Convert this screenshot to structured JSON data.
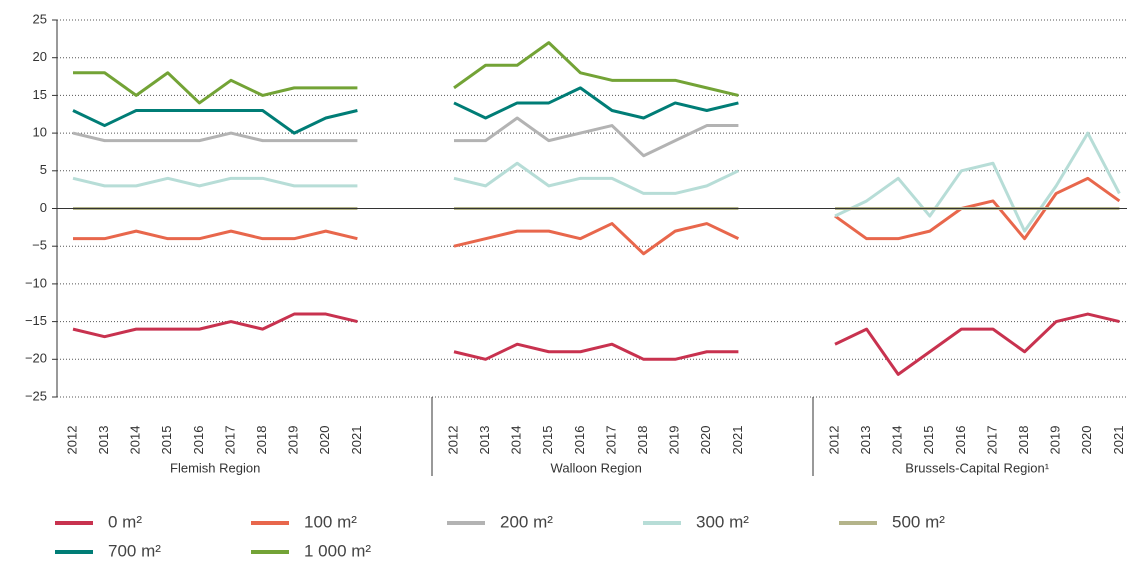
{
  "chart_data": {
    "type": "line",
    "ylim": [
      -25,
      25
    ],
    "yticks": [
      {
        "value": -25,
        "label": "−25"
      },
      {
        "value": -20,
        "label": "−20"
      },
      {
        "value": -15,
        "label": "−15"
      },
      {
        "value": -10,
        "label": "−10"
      },
      {
        "value": -5,
        "label": "−5"
      },
      0,
      5,
      10,
      15,
      20,
      25
    ],
    "grid": true,
    "legend": "bottom",
    "series": [
      {
        "name": "0 m²",
        "color": "#c8324f"
      },
      {
        "name": "100 m²",
        "color": "#e8674c"
      },
      {
        "name": "200 m²",
        "color": "#b3b3b3"
      },
      {
        "name": "300 m²",
        "color": "#b7ddd7"
      },
      {
        "name": "500 m²",
        "color": "#b4b48a"
      },
      {
        "name": "700 m²",
        "color": "#007d76"
      },
      {
        "name": "1 000 m²",
        "color": "#73a336"
      }
    ],
    "panels": [
      {
        "label": "Flemish Region",
        "categories": [
          "2012",
          "2013",
          "2014",
          "2015",
          "2016",
          "2017",
          "2018",
          "2019",
          "2020",
          "2021"
        ],
        "values": [
          [
            -16,
            -17,
            -16,
            -16,
            -16,
            -15,
            -16,
            -14,
            -14,
            -15
          ],
          [
            -4,
            -4,
            -3,
            -4,
            -4,
            -3,
            -4,
            -4,
            -3,
            -4
          ],
          [
            10,
            9,
            9,
            9,
            9,
            10,
            9,
            9,
            9,
            9
          ],
          [
            4,
            3,
            3,
            4,
            3,
            4,
            4,
            3,
            3,
            3
          ],
          [
            0,
            0,
            0,
            0,
            0,
            0,
            0,
            0,
            0,
            0
          ],
          [
            13,
            11,
            13,
            13,
            13,
            13,
            13,
            10,
            12,
            13
          ],
          [
            18,
            18,
            15,
            18,
            14,
            17,
            15,
            16,
            16,
            16
          ]
        ]
      },
      {
        "label": "Walloon Region",
        "categories": [
          "2012",
          "2013",
          "2014",
          "2015",
          "2016",
          "2017",
          "2018",
          "2019",
          "2020",
          "2021"
        ],
        "values": [
          [
            -19,
            -20,
            -18,
            -19,
            -19,
            -18,
            -20,
            -20,
            -19,
            -19
          ],
          [
            -5,
            -4,
            -3,
            -3,
            -4,
            -2,
            -6,
            -3,
            -2,
            -4
          ],
          [
            9,
            9,
            12,
            9,
            10,
            11,
            7,
            9,
            11,
            11
          ],
          [
            4,
            3,
            6,
            3,
            4,
            4,
            2,
            2,
            3,
            5
          ],
          [
            0,
            0,
            0,
            0,
            0,
            0,
            0,
            0,
            0,
            0
          ],
          [
            14,
            12,
            14,
            14,
            16,
            13,
            12,
            14,
            13,
            14
          ],
          [
            16,
            19,
            19,
            22,
            18,
            17,
            17,
            17,
            16,
            15
          ]
        ]
      },
      {
        "label": "Brussels-Capital Region¹",
        "categories": [
          "2012",
          "2013",
          "2014",
          "2015",
          "2016",
          "2017",
          "2018",
          "2019",
          "2020",
          "2021"
        ],
        "values": [
          [
            -18,
            -16,
            -22,
            -19,
            -16,
            -16,
            -19,
            -15,
            -14,
            -15
          ],
          [
            -1,
            -4,
            -4,
            -3,
            0,
            1,
            -4,
            2,
            4,
            1
          ],
          [
            null,
            null,
            null,
            null,
            null,
            null,
            null,
            null,
            null,
            null
          ],
          [
            -1,
            1,
            4,
            -1,
            5,
            6,
            -3,
            3,
            10,
            2
          ],
          [
            0,
            0,
            0,
            0,
            0,
            0,
            0,
            0,
            0,
            0
          ],
          [
            null,
            null,
            null,
            null,
            null,
            null,
            null,
            null,
            null,
            null
          ],
          [
            null,
            null,
            null,
            null,
            null,
            null,
            null,
            null,
            null,
            null
          ]
        ]
      }
    ]
  }
}
